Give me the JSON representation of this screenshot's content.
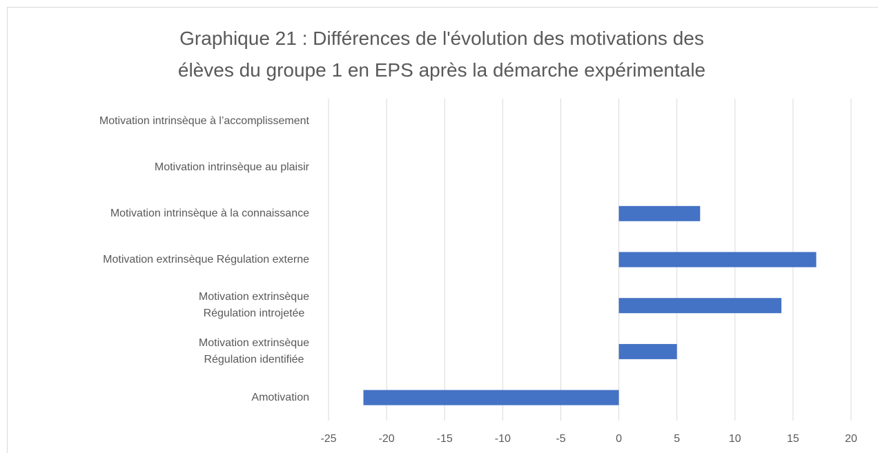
{
  "chart_data": {
    "type": "barh",
    "title": "Graphique 21 : Différences de l'évolution des motivations des\nélèves du groupe 1 en EPS après la démarche expérimentale",
    "categories": [
      "Motivation intrinsèque à l’accomplissement",
      "Motivation intrinsèque au plaisir",
      "Motivation intrinsèque à la connaissance",
      "Motivation extrinsèque Régulation externe",
      "Motivation extrinsèque\nRégulation introjetée",
      "Motivation extrinsèque\nRégulation identifiée",
      "Amotivation"
    ],
    "values": [
      0,
      0,
      7,
      17,
      14,
      5,
      -22
    ],
    "color": "#4472c4",
    "xlim": [
      -25,
      20
    ],
    "xticks": [
      -25,
      -20,
      -15,
      -10,
      -5,
      0,
      5,
      10,
      15,
      20
    ],
    "grid": true
  }
}
